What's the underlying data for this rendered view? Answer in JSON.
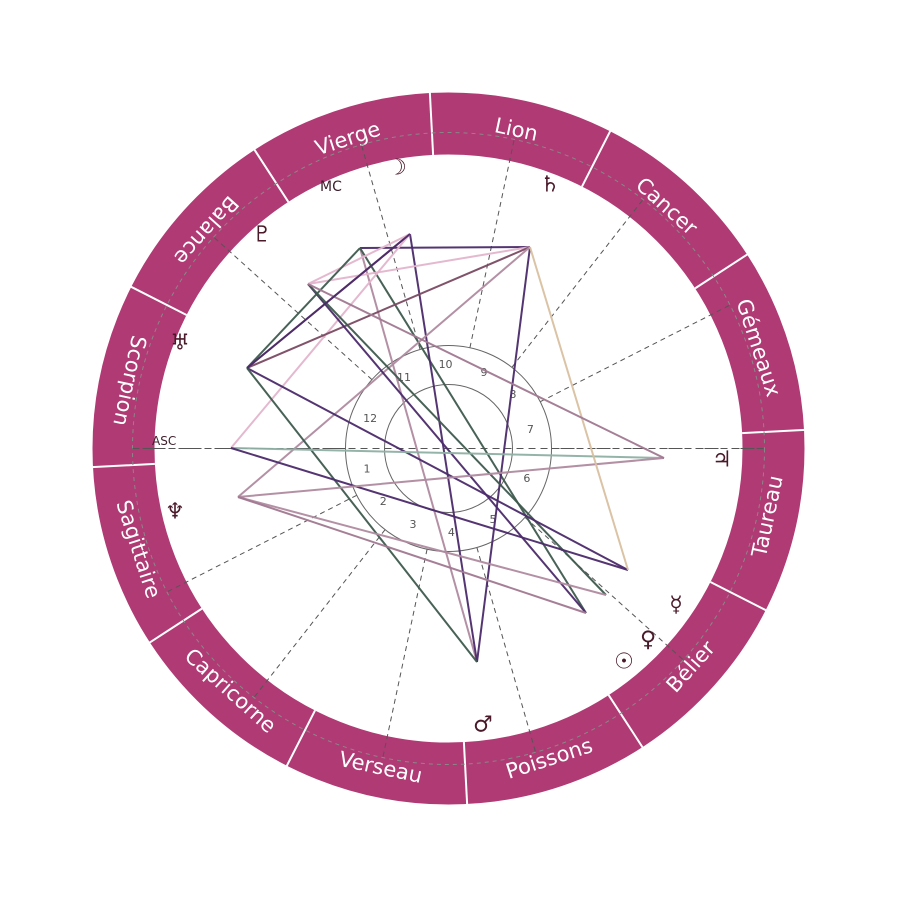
{
  "colors": {
    "zodiac_ring": "#b03a74",
    "separator": "#ffffff",
    "dashed": "#555555",
    "inner_ring": "#666666",
    "glyph": "#4a1a2a"
  },
  "zodiac": [
    {
      "name": "Vierge",
      "lon": 0
    },
    {
      "name": "Lion",
      "lon": 0
    },
    {
      "name": "Cancer",
      "lon": 0
    },
    {
      "name": "Gémeaux",
      "lon": 0
    },
    {
      "name": "Taureau",
      "lon": 0
    },
    {
      "name": "Bélier",
      "lon": 0
    },
    {
      "name": "Poissons",
      "lon": 0
    },
    {
      "name": "Verseau",
      "lon": 0
    },
    {
      "name": "Capricorne",
      "lon": 0
    },
    {
      "name": "Sagittaire",
      "lon": 0
    },
    {
      "name": "Scorpion",
      "lon": 0
    },
    {
      "name": "Balance",
      "lon": 0
    }
  ],
  "axes": {
    "asc": "ASC",
    "mc": "MC"
  },
  "house_numbers": [
    "1",
    "2",
    "3",
    "4",
    "5",
    "6",
    "7",
    "8",
    "9",
    "10",
    "11",
    "12"
  ],
  "planets": [
    {
      "name": "moon",
      "glyph": "☽"
    },
    {
      "name": "saturn",
      "glyph": "♄"
    },
    {
      "name": "pluto",
      "glyph": "♇"
    },
    {
      "name": "uranus",
      "glyph": "♅"
    },
    {
      "name": "jupiter",
      "glyph": "♃"
    },
    {
      "name": "neptune",
      "glyph": "♆"
    },
    {
      "name": "mercury",
      "glyph": "☿"
    },
    {
      "name": "venus",
      "glyph": "♀"
    },
    {
      "name": "sun",
      "glyph": "☉"
    },
    {
      "name": "mars",
      "glyph": "♂"
    }
  ],
  "aspect_colors": [
    "#4b2a6a",
    "#3e5a4e",
    "#b08aa0",
    "#e3b4cc",
    "#8fb0a4",
    "#d9c0a0",
    "#7a4a62",
    "#a07890"
  ]
}
